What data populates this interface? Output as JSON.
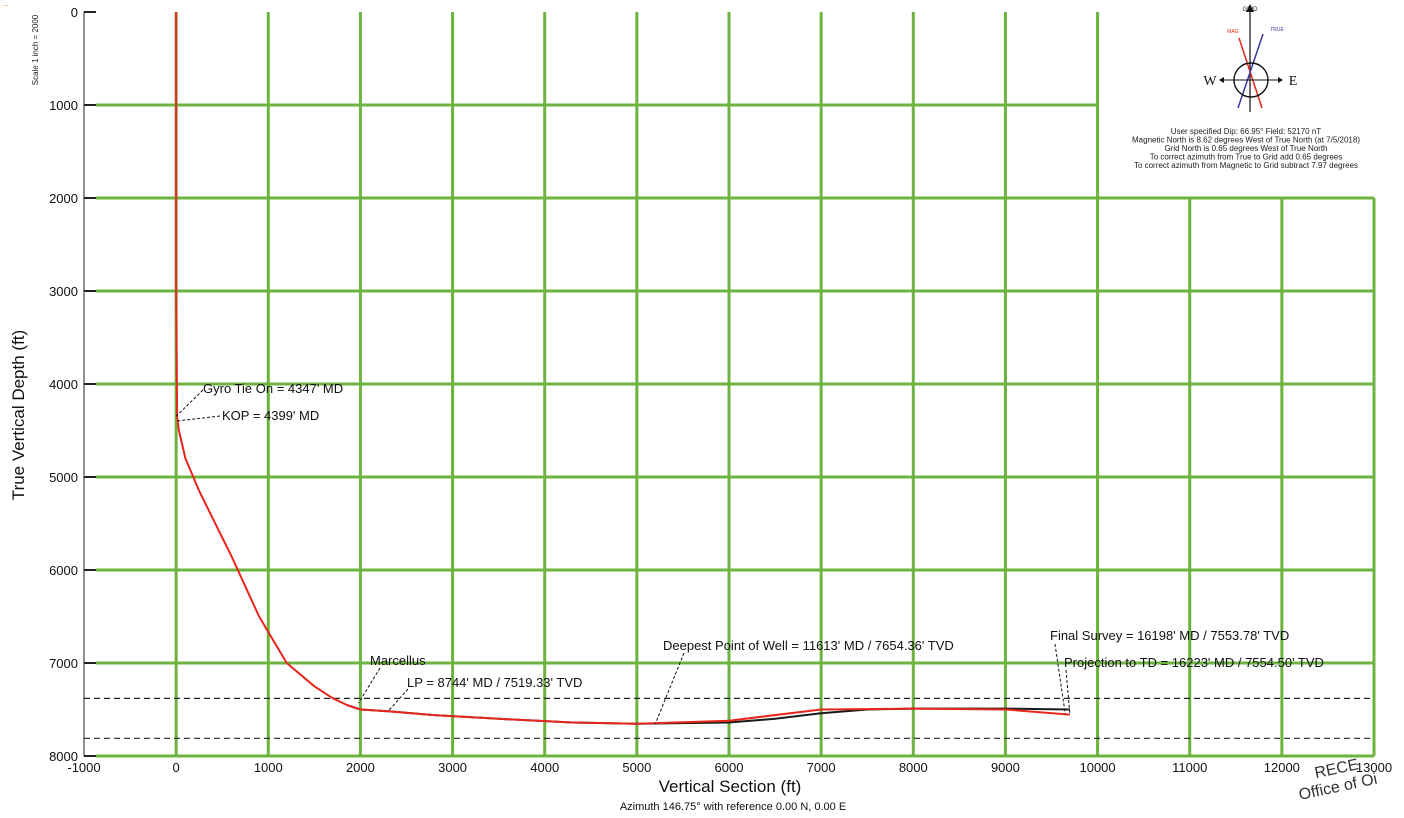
{
  "header_note": "...",
  "scale_note": "Scale 1 inch = 2000",
  "chart_data": {
    "type": "line",
    "xlabel": "Vertical Section (ft)",
    "xlabel_sub": "Azimuth 146.75° with reference 0.00 N, 0.00 E",
    "ylabel": "True Vertical Depth (ft)",
    "xlim": [
      -1000,
      13000
    ],
    "ylim": [
      0,
      8000
    ],
    "y_inverted": true,
    "x_ticks": [
      -1000,
      0,
      1000,
      2000,
      3000,
      4000,
      5000,
      6000,
      7000,
      8000,
      9000,
      10000,
      11000,
      12000,
      13000
    ],
    "y_ticks": [
      0,
      1000,
      2000,
      3000,
      4000,
      5000,
      6000,
      7000,
      8000
    ],
    "grid": true,
    "series": [
      {
        "color": "#e8261e",
        "x": [
          0,
          0,
          0,
          10,
          30,
          100,
          250,
          400,
          600,
          900,
          1200,
          1500,
          1700,
          1850,
          2000,
          2300,
          2800,
          3500,
          4300,
          5000,
          6000,
          7000,
          8000,
          9000,
          9700
        ],
        "y": [
          0,
          1000,
          3000,
          4347,
          4500,
          4800,
          5150,
          5450,
          5850,
          6500,
          7000,
          7250,
          7380,
          7450,
          7500,
          7519,
          7560,
          7600,
          7640,
          7654,
          7620,
          7500,
          7490,
          7500,
          7555
        ]
      },
      {
        "color": "#1a1a1a",
        "x": [
          1850,
          2000,
          2300,
          2800,
          3500,
          4300,
          5000,
          6000,
          6500,
          7000,
          7500,
          8000,
          9000,
          9700
        ],
        "y": [
          7450,
          7500,
          7519,
          7560,
          7600,
          7640,
          7654,
          7640,
          7600,
          7540,
          7500,
          7490,
          7490,
          7500
        ]
      }
    ],
    "reference_lines": [
      {
        "y": 7380,
        "style": "dashed"
      },
      {
        "y": 7810,
        "style": "dashed"
      }
    ],
    "annotations": [
      {
        "text": "Gyro Tie On = 4347' MD",
        "x": 0,
        "y": 4347
      },
      {
        "text": "KOP = 4399' MD",
        "x": 0,
        "y": 4399
      },
      {
        "text": "Marcellus",
        "x": 1980,
        "y": 7430
      },
      {
        "text": "LP = 8744' MD / 7519.33' TVD",
        "x": 2300,
        "y": 7519
      },
      {
        "text": "Deepest Point of Well = 11613' MD / 7654.36' TVD",
        "x": 5200,
        "y": 7654
      },
      {
        "text": "Final Survey = 16198' MD / 7553.78' TVD",
        "x": 9650,
        "y": 7553
      },
      {
        "text": "Projection to TD = 16223' MD / 7554.50' TVD",
        "x": 9700,
        "y": 7554
      }
    ]
  },
  "compass": {
    "grid_label": "GRID",
    "mag_label": "MAG",
    "true_label": "TRUE",
    "west": "W",
    "east": "E",
    "notes": [
      "User specified Dip: 66.95°  Field: 52170 nT",
      "Magnetic North is 8.62 degrees West of True North (at 7/5/2018)",
      "Grid North is 0.65 degrees West of True North",
      "To correct azimuth from True to Grid add 0.65 degrees",
      "To correct azimuth from Magnetic to Grid subtract 7.97 degrees"
    ],
    "mag_color": "#e8261e",
    "true_color": "#3a3aa0"
  },
  "stamp": {
    "line1": "RECE",
    "line2": "Office of Oi"
  }
}
